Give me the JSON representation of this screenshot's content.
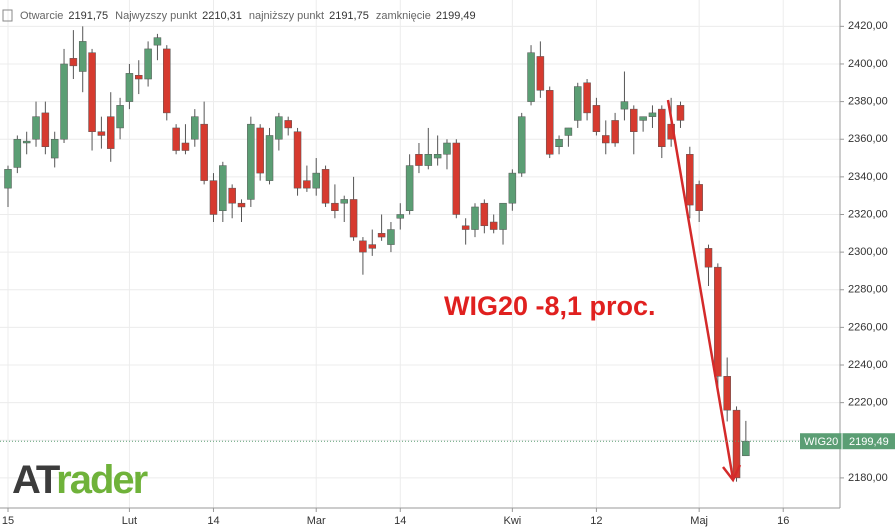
{
  "header": {
    "items": [
      {
        "label": "Otwarcie",
        "value": "2191,75"
      },
      {
        "label": "Najwyzszy punkt",
        "value": "2210,31"
      },
      {
        "label": "najniższy punkt",
        "value": "2191,75"
      },
      {
        "label": "zamknięcie",
        "value": "2199,49"
      }
    ]
  },
  "logo": {
    "prefix": "AT",
    "suffix": "rader"
  },
  "chart_data": {
    "type": "candlestick",
    "annotation": "WIG20 -8,1 proc.",
    "last_price": {
      "name": "WIG20",
      "value": 2199.49,
      "label": "2199,49"
    },
    "up_color": "#5b9e74",
    "down_color": "#d63a2f",
    "grid": true,
    "ylim": [
      2164,
      2434
    ],
    "yticks": [
      {
        "value": 2180,
        "label": "2180,00"
      },
      {
        "value": 2200,
        "label": "2200,00"
      },
      {
        "value": 2220,
        "label": "2220,00"
      },
      {
        "value": 2240,
        "label": "2240,00"
      },
      {
        "value": 2260,
        "label": "2260,00"
      },
      {
        "value": 2280,
        "label": "2280,00"
      },
      {
        "value": 2300,
        "label": "2300,00"
      },
      {
        "value": 2320,
        "label": "2320,00"
      },
      {
        "value": 2340,
        "label": "2340,00"
      },
      {
        "value": 2360,
        "label": "2360,00"
      },
      {
        "value": 2380,
        "label": "2380,00"
      },
      {
        "value": 2400,
        "label": "2400,00"
      },
      {
        "value": 2420,
        "label": "2420,00"
      }
    ],
    "categories": [
      "15",
      null,
      null,
      null,
      null,
      null,
      null,
      null,
      null,
      null,
      null,
      null,
      null,
      "Lut",
      null,
      null,
      null,
      null,
      null,
      null,
      null,
      null,
      "14",
      null,
      null,
      null,
      null,
      null,
      null,
      null,
      null,
      null,
      null,
      "Mar",
      null,
      null,
      null,
      null,
      null,
      null,
      null,
      null,
      "14",
      null,
      null,
      null,
      null,
      null,
      null,
      null,
      null,
      null,
      null,
      null,
      "Kwi",
      null,
      null,
      null,
      null,
      null,
      null,
      null,
      null,
      "12",
      null,
      null,
      null,
      null,
      null,
      null,
      null,
      null,
      null,
      null,
      "Maj",
      null,
      null,
      null,
      null,
      null,
      null,
      null,
      null,
      "16"
    ],
    "open": [
      2334,
      2345,
      2358,
      2360,
      2374,
      2350,
      2360,
      2403,
      2396,
      2406,
      2364,
      2372,
      2366,
      2380,
      2394,
      2392,
      2410,
      2408,
      2366,
      2358,
      2360,
      2368,
      2338,
      2322,
      2334,
      2326,
      2328,
      2366,
      2338,
      2360,
      2370,
      2364,
      2338,
      2334,
      2344,
      2326,
      2326,
      2328,
      2306,
      2304,
      2310,
      2304,
      2318,
      2322,
      2352,
      2346,
      2350,
      2352,
      2358,
      2314,
      2312,
      2326,
      2316,
      2312,
      2326,
      2342,
      2380,
      2404,
      2386,
      2356,
      2362,
      2370,
      2390,
      2378,
      2362,
      2370,
      2376,
      2376,
      2370,
      2372,
      2376,
      2368,
      2378,
      2352,
      2336,
      2302,
      2292,
      2234,
      2216,
      2191.75,
      null,
      null,
      null,
      null
    ],
    "high": [
      2346,
      2362,
      2364,
      2380,
      2380,
      2364,
      2408,
      2418,
      2420,
      2408,
      2372,
      2385,
      2382,
      2400,
      2402,
      2412,
      2416,
      2410,
      2368,
      2368,
      2376,
      2380,
      2342,
      2348,
      2336,
      2328,
      2372,
      2368,
      2366,
      2374,
      2372,
      2366,
      2346,
      2350,
      2346,
      2336,
      2330,
      2340,
      2308,
      2312,
      2320,
      2316,
      2326,
      2352,
      2358,
      2366,
      2362,
      2360,
      2360,
      2318,
      2326,
      2328,
      2320,
      2326,
      2344,
      2374,
      2410,
      2412,
      2388,
      2362,
      2366,
      2390,
      2392,
      2382,
      2370,
      2374,
      2396,
      2378,
      2372,
      2378,
      2378,
      2382,
      2380,
      2356,
      2338,
      2304,
      2294,
      2244,
      2218,
      2210.31,
      null,
      null,
      null,
      null
    ],
    "low": [
      2324,
      2342,
      2352,
      2356,
      2352,
      2345,
      2358,
      2392,
      2385,
      2354,
      2355,
      2348,
      2360,
      2376,
      2384,
      2388,
      2402,
      2370,
      2352,
      2352,
      2356,
      2336,
      2316,
      2316,
      2318,
      2316,
      2324,
      2338,
      2336,
      2354,
      2362,
      2330,
      2332,
      2330,
      2324,
      2318,
      2316,
      2306,
      2288,
      2298,
      2306,
      2300,
      2312,
      2320,
      2342,
      2344,
      2346,
      2344,
      2318,
      2304,
      2308,
      2310,
      2310,
      2304,
      2322,
      2340,
      2378,
      2382,
      2350,
      2352,
      2356,
      2366,
      2370,
      2362,
      2352,
      2356,
      2370,
      2352,
      2364,
      2366,
      2350,
      2356,
      2366,
      2318,
      2316,
      2282,
      2226,
      2210,
      2178,
      2191.75,
      null,
      null,
      null,
      null
    ],
    "close": [
      2344,
      2360,
      2359,
      2372,
      2356,
      2360,
      2400,
      2399,
      2412,
      2364,
      2362,
      2355,
      2378,
      2395,
      2392,
      2408,
      2414,
      2374,
      2354,
      2354,
      2372,
      2338,
      2320,
      2346,
      2326,
      2324,
      2368,
      2342,
      2362,
      2372,
      2366,
      2334,
      2334,
      2342,
      2326,
      2322,
      2328,
      2308,
      2300,
      2302,
      2308,
      2312,
      2320,
      2346,
      2346,
      2352,
      2352,
      2358,
      2320,
      2312,
      2324,
      2314,
      2312,
      2326,
      2342,
      2372,
      2406,
      2386,
      2352,
      2360,
      2366,
      2388,
      2374,
      2364,
      2358,
      2358,
      2380,
      2364,
      2372,
      2374,
      2356,
      2360,
      2370,
      2325,
      2322,
      2292,
      2234,
      2216,
      2180,
      2199.49,
      null,
      null,
      null,
      null
    ]
  }
}
